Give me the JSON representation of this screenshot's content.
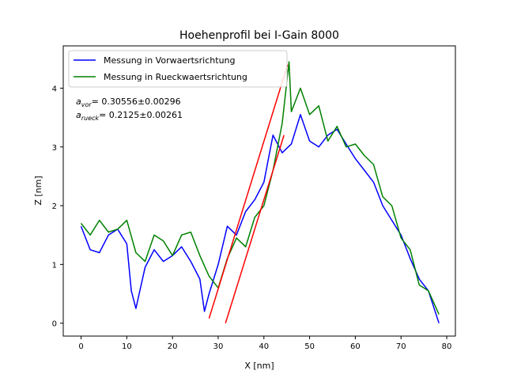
{
  "chart_data": {
    "type": "line",
    "title": "Hoehenprofil bei I-Gain  8000",
    "xlabel": "X [nm]",
    "ylabel": "Z [nm]",
    "xlim": [
      -3.9,
      81.9
    ],
    "ylim": [
      -0.22,
      4.72
    ],
    "xticks": [
      0,
      10,
      20,
      30,
      40,
      50,
      60,
      70,
      80
    ],
    "yticks": [
      0,
      1,
      2,
      3,
      4
    ],
    "xtick_labels": [
      "0",
      "10",
      "20",
      "30",
      "40",
      "50",
      "60",
      "70",
      "80"
    ],
    "ytick_labels": [
      "0",
      "1",
      "2",
      "3",
      "4"
    ],
    "grid": false,
    "legend_position": "top-left",
    "series": [
      {
        "name": "Messung in Vorwaertsrichtung",
        "color": "#0000ff",
        "x": [
          0,
          2,
          4,
          6,
          8,
          10,
          11,
          12,
          14,
          16,
          18,
          20,
          22,
          24,
          26,
          27,
          28,
          30,
          32,
          34,
          36,
          38,
          40,
          42,
          44,
          46,
          48,
          50,
          52,
          54,
          56,
          58,
          60,
          62,
          64,
          66,
          68,
          70,
          72,
          74,
          76,
          78.3
        ],
        "y": [
          1.65,
          1.25,
          1.2,
          1.5,
          1.6,
          1.35,
          0.55,
          0.25,
          0.95,
          1.25,
          1.05,
          1.15,
          1.3,
          1.05,
          0.75,
          0.2,
          0.5,
          1.0,
          1.65,
          1.5,
          1.9,
          2.1,
          2.4,
          3.2,
          2.9,
          3.05,
          3.55,
          3.1,
          3.0,
          3.2,
          3.3,
          3.05,
          2.8,
          2.6,
          2.4,
          2.0,
          1.75,
          1.5,
          1.1,
          0.75,
          0.55,
          0.0
        ]
      },
      {
        "name": "Messung in Rueckwaertsrichtung",
        "color": "#008000",
        "x": [
          0,
          2,
          4,
          6,
          8,
          10,
          12,
          14,
          16,
          18,
          20,
          22,
          24,
          26,
          28,
          30,
          32,
          34,
          36,
          38,
          40,
          42,
          44,
          45.5,
          46,
          48,
          50,
          52,
          54,
          56,
          58,
          60,
          62,
          64,
          66,
          68,
          70,
          72,
          74,
          76,
          78.3
        ],
        "y": [
          1.7,
          1.5,
          1.75,
          1.55,
          1.6,
          1.75,
          1.2,
          1.05,
          1.5,
          1.4,
          1.15,
          1.5,
          1.55,
          1.15,
          0.8,
          0.6,
          1.1,
          1.45,
          1.3,
          1.8,
          2.0,
          2.6,
          3.4,
          4.45,
          3.6,
          4.0,
          3.55,
          3.7,
          3.1,
          3.35,
          3.0,
          3.05,
          2.85,
          2.7,
          2.15,
          2.0,
          1.45,
          1.25,
          0.65,
          0.55,
          0.15
        ]
      },
      {
        "name": "",
        "color": "#ff0000",
        "x": [
          28.0,
          45.2
        ],
        "y": [
          0.08,
          4.4
        ]
      },
      {
        "name": "",
        "color": "#ff0000",
        "x": [
          31.6,
          44.4
        ],
        "y": [
          0.0,
          3.2
        ]
      }
    ],
    "annotations": [
      {
        "prefix": "a",
        "subscript": "vor",
        "text": "= 0.30556±0.00296"
      },
      {
        "prefix": "a",
        "subscript": "rueck",
        "text": "= 0.2125±0.00261"
      }
    ]
  }
}
